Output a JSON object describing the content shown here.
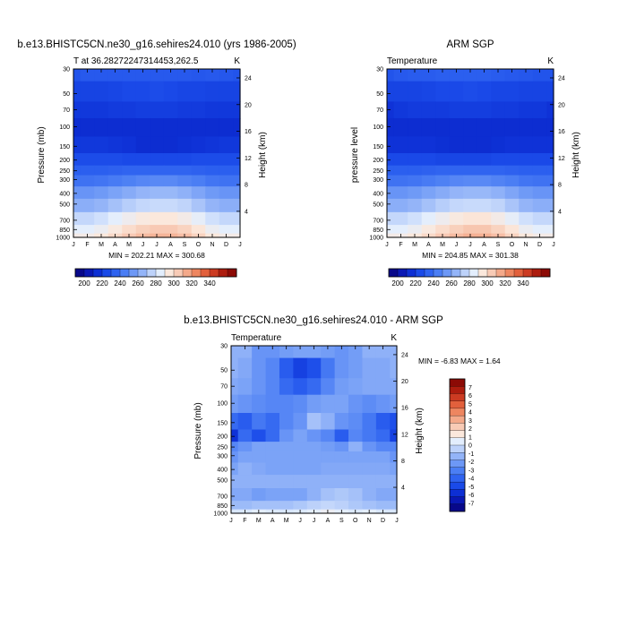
{
  "colors": {
    "temp_scale": [
      "#08088a",
      "#0a18b4",
      "#0d2fd4",
      "#1a4ae8",
      "#2f63f0",
      "#4b7ef4",
      "#6d98f6",
      "#93b4f8",
      "#bdd2fa",
      "#e3eefd",
      "#fbe8dc",
      "#f8cbb6",
      "#f4a98a",
      "#ee8660",
      "#e2603c",
      "#cc3b22",
      "#ad1c0e",
      "#8c0a05"
    ],
    "diff_scale": [
      "#08088a",
      "#0a18b4",
      "#0d2fd4",
      "#1a4ae8",
      "#2f63f0",
      "#4b7ef4",
      "#6d98f6",
      "#93b4f8",
      "#bdd2fa",
      "#e3eefd",
      "#fbe8dc",
      "#f8cbb6",
      "#f4a98a",
      "#ee8660",
      "#e2603c",
      "#cc3b22",
      "#ad1c0e",
      "#8c0a05"
    ]
  },
  "chart_data": [
    {
      "type": "heatmap",
      "title": "b.e13.BHISTC5CN.ne30_g16.sehires24.010 (yrs 1986-2005)",
      "subtitle_left": "T at 36.28272247314453,262.5",
      "subtitle_right": "K",
      "ylabel": "Pressure (mb)",
      "ylabel_right": "Height (km)",
      "x_ticks": [
        "J",
        "F",
        "M",
        "A",
        "M",
        "J",
        "J",
        "A",
        "S",
        "O",
        "N",
        "D",
        "J"
      ],
      "y_ticks": [
        "30",
        "50",
        "70",
        "100",
        "150",
        "200",
        "250",
        "300",
        "400",
        "500",
        "700",
        "850",
        "1000"
      ],
      "y_ticks_right": [
        "24",
        "20",
        "16",
        "12",
        "8",
        "4"
      ],
      "minmax": "MIN = 202.21  MAX = 300.68",
      "colorbar_labels": [
        "200",
        "220",
        "240",
        "260",
        "280",
        "300",
        "320",
        "340"
      ],
      "levels": [
        30,
        50,
        70,
        100,
        150,
        200,
        250,
        300,
        400,
        500,
        700,
        850,
        1000
      ],
      "values": [
        [
          222,
          224,
          224,
          224,
          224,
          224,
          224,
          224,
          224,
          223,
          224,
          223,
          222
        ],
        [
          216,
          216,
          216,
          217,
          218,
          218,
          219,
          218,
          217,
          217,
          216,
          216,
          216
        ],
        [
          212,
          212,
          212,
          213,
          213,
          214,
          214,
          214,
          213,
          213,
          212,
          212,
          212
        ],
        [
          208,
          208,
          208,
          208,
          208,
          208,
          208,
          208,
          208,
          208,
          208,
          208,
          208
        ],
        [
          212,
          212,
          212,
          211,
          210,
          208,
          208,
          208,
          209,
          210,
          211,
          212,
          212
        ],
        [
          219,
          219,
          219,
          219,
          218,
          218,
          218,
          218,
          218,
          219,
          219,
          219,
          219
        ],
        [
          226,
          226,
          226,
          227,
          228,
          228,
          228,
          228,
          228,
          227,
          226,
          226,
          226
        ],
        [
          233,
          233,
          234,
          236,
          238,
          240,
          241,
          241,
          239,
          237,
          234,
          233,
          233
        ],
        [
          245,
          245,
          247,
          250,
          253,
          256,
          257,
          257,
          255,
          251,
          247,
          245,
          245
        ],
        [
          254,
          254,
          256,
          260,
          264,
          267,
          268,
          268,
          266,
          261,
          256,
          254,
          254
        ],
        [
          267,
          267,
          270,
          275,
          279,
          283,
          284,
          284,
          281,
          276,
          270,
          267,
          267
        ],
        [
          275,
          275,
          278,
          283,
          288,
          292,
          294,
          294,
          291,
          285,
          278,
          275,
          275
        ],
        [
          281,
          281,
          284,
          289,
          294,
          298,
          300,
          300,
          297,
          291,
          284,
          281,
          281
        ]
      ]
    },
    {
      "type": "heatmap",
      "title": "ARM SGP",
      "subtitle_left": "Temperature",
      "subtitle_right": "K",
      "ylabel": "pressure level",
      "ylabel_right": "Height (km)",
      "x_ticks": [
        "J",
        "F",
        "M",
        "A",
        "M",
        "J",
        "J",
        "A",
        "S",
        "O",
        "N",
        "D",
        "J"
      ],
      "y_ticks": [
        "30",
        "50",
        "70",
        "100",
        "150",
        "200",
        "250",
        "300",
        "400",
        "500",
        "700",
        "850",
        "1000"
      ],
      "y_ticks_right": [
        "24",
        "20",
        "16",
        "12",
        "8",
        "4"
      ],
      "minmax": "MIN = 204.85  MAX = 301.38",
      "colorbar_labels": [
        "200",
        "220",
        "240",
        "260",
        "280",
        "300",
        "320",
        "340"
      ],
      "levels": [
        30,
        50,
        70,
        100,
        150,
        200,
        250,
        300,
        400,
        500,
        700,
        850,
        1000
      ],
      "values": [
        [
          222,
          224,
          225,
          225,
          226,
          226,
          226,
          226,
          225,
          224,
          223,
          222,
          222
        ],
        [
          216,
          216,
          216,
          217,
          218,
          218,
          219,
          218,
          217,
          217,
          216,
          216,
          216
        ],
        [
          210,
          212,
          213,
          213,
          213,
          214,
          214,
          214,
          213,
          213,
          212,
          212,
          210
        ],
        [
          208,
          208,
          208,
          208,
          208,
          208,
          208,
          208,
          208,
          208,
          208,
          208,
          208
        ],
        [
          210,
          210,
          210,
          210,
          209,
          208,
          208,
          208,
          209,
          210,
          210,
          210,
          210
        ],
        [
          218,
          218,
          218,
          218,
          217,
          217,
          217,
          217,
          218,
          218,
          218,
          218,
          218
        ],
        [
          226,
          226,
          226,
          227,
          228,
          228,
          228,
          228,
          228,
          227,
          226,
          226,
          226
        ],
        [
          233,
          233,
          234,
          236,
          238,
          240,
          241,
          241,
          239,
          237,
          234,
          233,
          233
        ],
        [
          245,
          245,
          247,
          250,
          253,
          256,
          257,
          257,
          255,
          251,
          247,
          245,
          245
        ],
        [
          254,
          254,
          256,
          260,
          264,
          267,
          268,
          268,
          266,
          261,
          256,
          254,
          254
        ],
        [
          267,
          267,
          270,
          275,
          279,
          283,
          285,
          285,
          281,
          276,
          270,
          267,
          267
        ],
        [
          275,
          275,
          278,
          283,
          288,
          292,
          295,
          295,
          291,
          285,
          278,
          275,
          275
        ],
        [
          281,
          281,
          284,
          289,
          294,
          298,
          301,
          301,
          297,
          291,
          284,
          281,
          281
        ]
      ]
    },
    {
      "type": "heatmap",
      "title": "b.e13.BHISTC5CN.ne30_g16.sehires24.010 - ARM SGP",
      "subtitle_left": "Temperature",
      "subtitle_right": "K",
      "ylabel": "Pressure (mb)",
      "ylabel_right": "Height (km)",
      "x_ticks": [
        "J",
        "F",
        "M",
        "A",
        "M",
        "J",
        "J",
        "A",
        "S",
        "O",
        "N",
        "D",
        "J"
      ],
      "y_ticks": [
        "30",
        "50",
        "70",
        "100",
        "150",
        "200",
        "250",
        "300",
        "400",
        "500",
        "700",
        "850",
        "1000"
      ],
      "y_ticks_right": [
        "24",
        "20",
        "16",
        "12",
        "8",
        "4"
      ],
      "minmax": "MIN =  -6.83  MAX =   1.64",
      "colorbar_labels": [
        "7",
        "6",
        "5",
        "4",
        "3",
        "2",
        "1",
        "0",
        "-1",
        "-2",
        "-3",
        "-4",
        "-5",
        "-6",
        "-7"
      ],
      "levels": [
        30,
        50,
        70,
        100,
        150,
        200,
        250,
        300,
        400,
        500,
        700,
        850,
        1000
      ],
      "values": [
        [
          -1.5,
          -1.5,
          -2.5,
          -2.5,
          -2.2,
          -2.0,
          -2.0,
          -2.2,
          -2.5,
          -2.2,
          -1.5,
          -1.5,
          -1.5
        ],
        [
          -1.5,
          -1.8,
          -2.5,
          -3.0,
          -4.5,
          -5.5,
          -5.0,
          -3.5,
          -2.5,
          -2.2,
          -1.8,
          -1.8,
          -1.5
        ],
        [
          -1.8,
          -2.0,
          -2.5,
          -3.0,
          -4.0,
          -4.5,
          -4.0,
          -3.0,
          -2.2,
          -2.0,
          -1.8,
          -1.8,
          -1.8
        ],
        [
          -2.2,
          -2.5,
          -2.8,
          -3.0,
          -3.0,
          -2.8,
          -2.2,
          -2.0,
          -2.0,
          -2.5,
          -2.8,
          -2.5,
          -2.2
        ],
        [
          -4.0,
          -4.5,
          -3.5,
          -4.0,
          -3.0,
          -2.5,
          -1.0,
          -1.5,
          -2.5,
          -2.8,
          -3.5,
          -4.5,
          -5.0
        ],
        [
          -6.0,
          -4.0,
          -5.0,
          -4.0,
          -2.5,
          -2.0,
          -2.5,
          -3.0,
          -4.5,
          -3.0,
          -3.5,
          -4.0,
          -5.5
        ],
        [
          -3.0,
          -2.5,
          -2.0,
          -2.0,
          -2.0,
          -2.0,
          -2.0,
          -2.2,
          -2.5,
          -1.5,
          -2.5,
          -3.0,
          -3.0
        ],
        [
          -2.5,
          -2.0,
          -2.0,
          -2.0,
          -2.0,
          -2.0,
          -2.0,
          -2.0,
          -2.0,
          -2.0,
          -2.0,
          -2.0,
          -2.5
        ],
        [
          -2.0,
          -1.5,
          -1.8,
          -2.0,
          -2.0,
          -2.0,
          -2.0,
          -1.8,
          -1.8,
          -1.8,
          -1.8,
          -1.8,
          -2.0
        ],
        [
          -1.5,
          -1.5,
          -1.5,
          -1.5,
          -1.5,
          -1.5,
          -1.5,
          -1.5,
          -1.5,
          -1.5,
          -1.5,
          -1.5,
          -1.5
        ],
        [
          -1.8,
          -1.8,
          -2.2,
          -2.0,
          -2.0,
          -2.0,
          -1.5,
          -1.0,
          -0.8,
          -1.0,
          -1.5,
          -1.8,
          -1.8
        ],
        [
          -1.2,
          -1.2,
          -1.0,
          -1.0,
          -1.0,
          -0.8,
          -0.5,
          -0.3,
          -0.5,
          -0.8,
          -1.0,
          -1.2,
          -1.2
        ],
        [
          0.2,
          0.2,
          0.5,
          0.3,
          0.2,
          0.3,
          0.5,
          0.8,
          0.5,
          0.3,
          0.5,
          0.2,
          0.2
        ]
      ]
    }
  ]
}
